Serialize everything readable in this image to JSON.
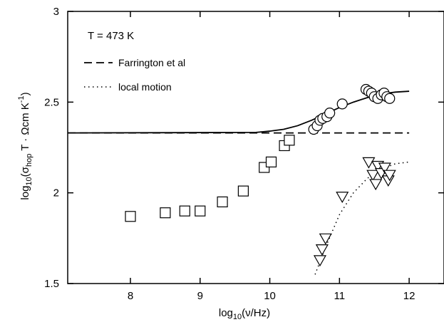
{
  "chart_data": {
    "type": "scatter",
    "annotation": "T = 473 K",
    "xlabel": {
      "main": "log",
      "sub": "10",
      "rest": "(ν/Hz)"
    },
    "ylabel": {
      "pre": "log",
      "sub1": "10",
      "mid": "(σ",
      "sub2": "hop",
      "rest": " T · Ωcm K",
      "sup": "-1",
      "end": ")"
    },
    "xlim": [
      7.1,
      12.5
    ],
    "ylim": [
      1.5,
      3.0
    ],
    "xticks": [
      "8",
      "9",
      "10",
      "11",
      "12"
    ],
    "yticks": [
      "1.5",
      "2",
      "2.5",
      "3"
    ],
    "xtick_values": [
      8,
      9,
      10,
      11,
      12
    ],
    "ytick_values": [
      1.5,
      2,
      2.5,
      3
    ],
    "legend": [
      {
        "label": "Farrington et al",
        "style": "dashed"
      },
      {
        "label": "local motion",
        "style": "dotted"
      }
    ],
    "series": [
      {
        "marker": "square",
        "x": [
          8.0,
          8.5,
          8.78,
          9.0,
          9.32,
          9.62,
          9.92,
          10.02,
          10.21,
          10.28
        ],
        "y": [
          1.87,
          1.89,
          1.9,
          1.9,
          1.95,
          2.01,
          2.14,
          2.17,
          2.26,
          2.29
        ]
      },
      {
        "marker": "circle",
        "x": [
          10.63,
          10.68,
          10.72,
          10.76,
          10.82,
          10.86,
          11.04,
          11.38,
          11.42,
          11.46,
          11.5,
          11.55,
          11.6,
          11.64,
          11.68,
          11.72
        ],
        "y": [
          2.35,
          2.37,
          2.4,
          2.41,
          2.42,
          2.44,
          2.49,
          2.57,
          2.56,
          2.55,
          2.53,
          2.52,
          2.54,
          2.55,
          2.53,
          2.52
        ]
      },
      {
        "marker": "triangle-down",
        "x": [
          10.72,
          10.75,
          10.8,
          11.04,
          11.42,
          11.48,
          11.52,
          11.55,
          11.6,
          11.65,
          11.7,
          11.72
        ],
        "y": [
          1.63,
          1.69,
          1.75,
          1.98,
          2.17,
          2.1,
          2.05,
          2.15,
          2.11,
          2.14,
          2.07,
          2.1
        ]
      }
    ],
    "lines": [
      {
        "style": "dashed",
        "x": [
          7.1,
          12.0
        ],
        "y": [
          2.33,
          2.33
        ]
      },
      {
        "style": "solid",
        "x": [
          7.1,
          9.8,
          10.0,
          10.2,
          10.4,
          10.6,
          10.8,
          11.0,
          11.2,
          11.4,
          11.6,
          11.8,
          12.0
        ],
        "y": [
          2.33,
          2.333,
          2.34,
          2.35,
          2.37,
          2.4,
          2.435,
          2.47,
          2.5,
          2.525,
          2.545,
          2.555,
          2.56
        ]
      },
      {
        "style": "dotted",
        "x": [
          10.65,
          10.8,
          11.0,
          11.2,
          11.4,
          11.6,
          11.8,
          12.0
        ],
        "y": [
          1.55,
          1.7,
          1.88,
          2.0,
          2.08,
          2.13,
          2.16,
          2.17
        ]
      }
    ]
  }
}
